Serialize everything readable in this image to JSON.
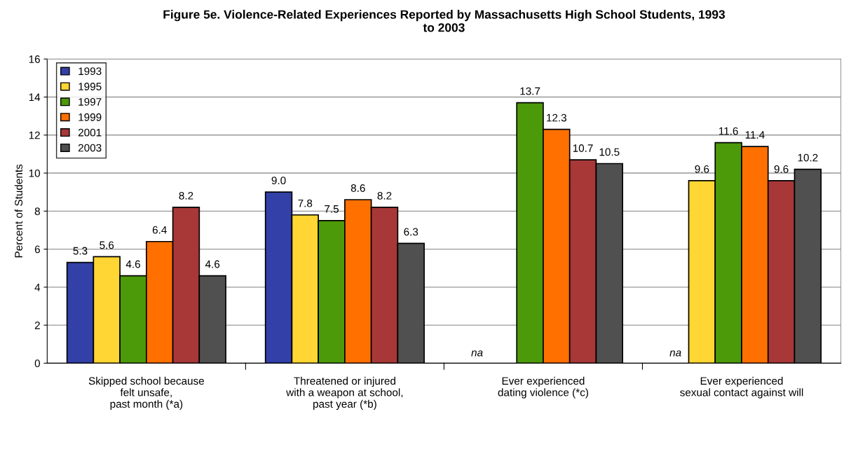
{
  "chart_data": {
    "type": "bar",
    "title": "Figure 5e. Violence-Related Experiences Reported by Massachusetts High School Students, 1993\nto 2003",
    "ylabel": "Percent of Students",
    "categories": [
      "Skipped school because\nfelt unsafe,\npast month (*a)",
      "Threatened or injured\nwith a weapon at school,\npast year (*b)",
      "Ever experienced\ndating violence (*c)",
      "Ever experienced\nsexual contact against will"
    ],
    "series": [
      {
        "name": "1993",
        "color": "#3340a8",
        "values": [
          5.3,
          9.0,
          null,
          null
        ],
        "value_labels": [
          "5.3",
          "9.0",
          "na",
          "na"
        ]
      },
      {
        "name": "1995",
        "color": "#ffd633",
        "values": [
          5.6,
          7.8,
          null,
          9.6
        ],
        "value_labels": [
          "5.6",
          "7.8",
          null,
          "9.6"
        ]
      },
      {
        "name": "1997",
        "color": "#4c9a0a",
        "values": [
          4.6,
          7.5,
          13.7,
          11.6
        ],
        "value_labels": [
          "4.6",
          "7.5",
          "13.7",
          "11.6"
        ]
      },
      {
        "name": "1999",
        "color": "#ff7000",
        "values": [
          6.4,
          8.6,
          12.3,
          11.4
        ],
        "value_labels": [
          "6.4",
          "8.6",
          "12.3",
          "11.4"
        ]
      },
      {
        "name": "2001",
        "color": "#a83838",
        "values": [
          8.2,
          8.2,
          10.7,
          9.6
        ],
        "value_labels": [
          "8.2",
          "8.2",
          "10.7",
          "9.6"
        ]
      },
      {
        "name": "2003",
        "color": "#505050",
        "values": [
          4.6,
          6.3,
          10.5,
          10.2
        ],
        "value_labels": [
          "4.6",
          "6.3",
          "10.5",
          "10.2"
        ]
      }
    ],
    "ylim": [
      0,
      16
    ],
    "yticks": [
      0,
      2,
      4,
      6,
      8,
      10,
      12,
      14,
      16
    ],
    "grid": "y",
    "legend": "top left"
  }
}
